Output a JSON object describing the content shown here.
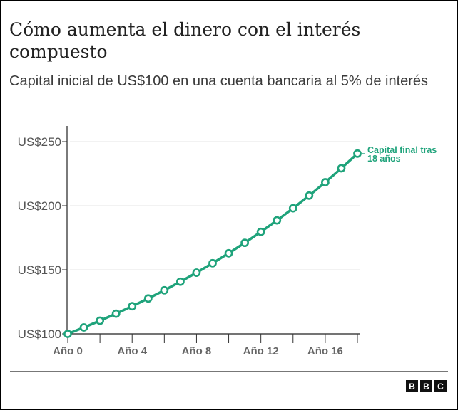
{
  "chart_data": {
    "type": "line",
    "title": "Cómo aumenta el dinero con el interés compuesto",
    "subtitle": "Capital inicial de US$100 en una cuenta bancaria al 5% de interés",
    "xlabel": "",
    "ylabel": "",
    "x": [
      0,
      1,
      2,
      3,
      4,
      5,
      6,
      7,
      8,
      9,
      10,
      11,
      12,
      13,
      14,
      15,
      16,
      17,
      18
    ],
    "series": [
      {
        "name": "Capital",
        "color": "#1fa37b",
        "values": [
          100,
          105,
          110.25,
          115.76,
          121.55,
          127.63,
          134.01,
          140.71,
          147.75,
          155.13,
          162.89,
          171.03,
          179.59,
          188.56,
          197.99,
          207.89,
          218.29,
          229.2,
          240.66
        ]
      }
    ],
    "ylim": [
      100,
      250
    ],
    "xlim": [
      0,
      18
    ],
    "y_ticks": [
      {
        "value": 100,
        "label": "US$100"
      },
      {
        "value": 150,
        "label": "US$150"
      },
      {
        "value": 200,
        "label": "US$200"
      },
      {
        "value": 250,
        "label": "US$250"
      }
    ],
    "x_ticks": [
      {
        "value": 0,
        "label": "Año 0"
      },
      {
        "value": 4,
        "label": "Año 4"
      },
      {
        "value": 8,
        "label": "Año 8"
      },
      {
        "value": 12,
        "label": "Año 12"
      },
      {
        "value": 16,
        "label": "Año 16"
      }
    ],
    "annotation": {
      "lines": [
        "Capital final tras",
        "18 años"
      ]
    },
    "grid": true
  },
  "footer": {
    "logo": "BBC",
    "letters": [
      "B",
      "B",
      "C"
    ]
  }
}
